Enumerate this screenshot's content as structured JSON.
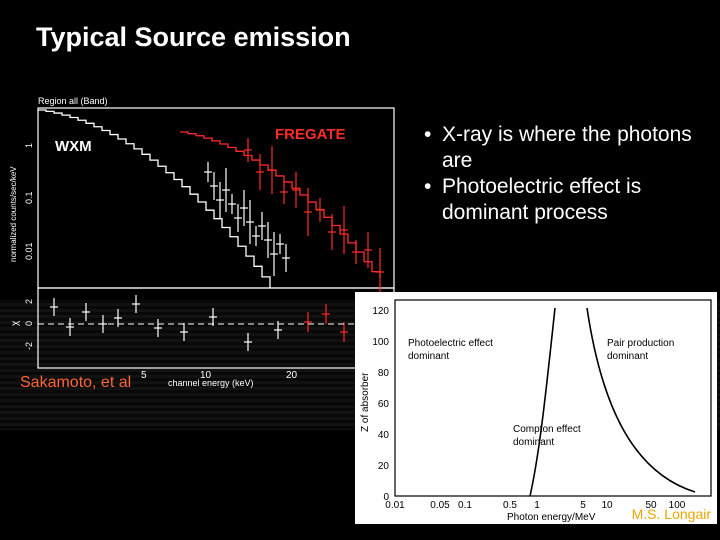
{
  "slide": {
    "title": "Typical Source emission"
  },
  "spectrum_figure": {
    "header": "Region all (Band)",
    "ylabel": "normalized counts/sec/keV",
    "ytick_labels": [
      "1",
      "0.1",
      "0.01"
    ],
    "residual_label": "χ",
    "residual_ticks": [
      "2",
      "0",
      "-2"
    ],
    "xlabel": "channel energy (keV)",
    "xtick_labels": [
      "5",
      "10",
      "20"
    ],
    "wxm_label": "WXM",
    "fregate_label": "FREGATE",
    "colors": {
      "wxm": "#ffffff",
      "fregate": "#ff2a2a"
    },
    "citation": "Sakamoto, et al"
  },
  "bullets": [
    "X-ray is where the photons are",
    "Photoelectric effect is dominant process"
  ],
  "absorber_figure": {
    "ylabel": "Z of absorber",
    "xlabel": "Photon energy/MeV",
    "ytick_labels": [
      "0",
      "20",
      "40",
      "60",
      "80",
      "100",
      "120"
    ],
    "xtick_labels": [
      "0.01",
      "0.05",
      "0.1",
      "0.5",
      "1",
      "5",
      "10",
      "50",
      "100"
    ],
    "regions": {
      "photoelectric": [
        "Photoelectric effect",
        "dominant"
      ],
      "pair": [
        "Pair production",
        "dominant"
      ],
      "compton": [
        "Compton effect",
        "dominant"
      ]
    },
    "citation": "M.S. Longair"
  }
}
